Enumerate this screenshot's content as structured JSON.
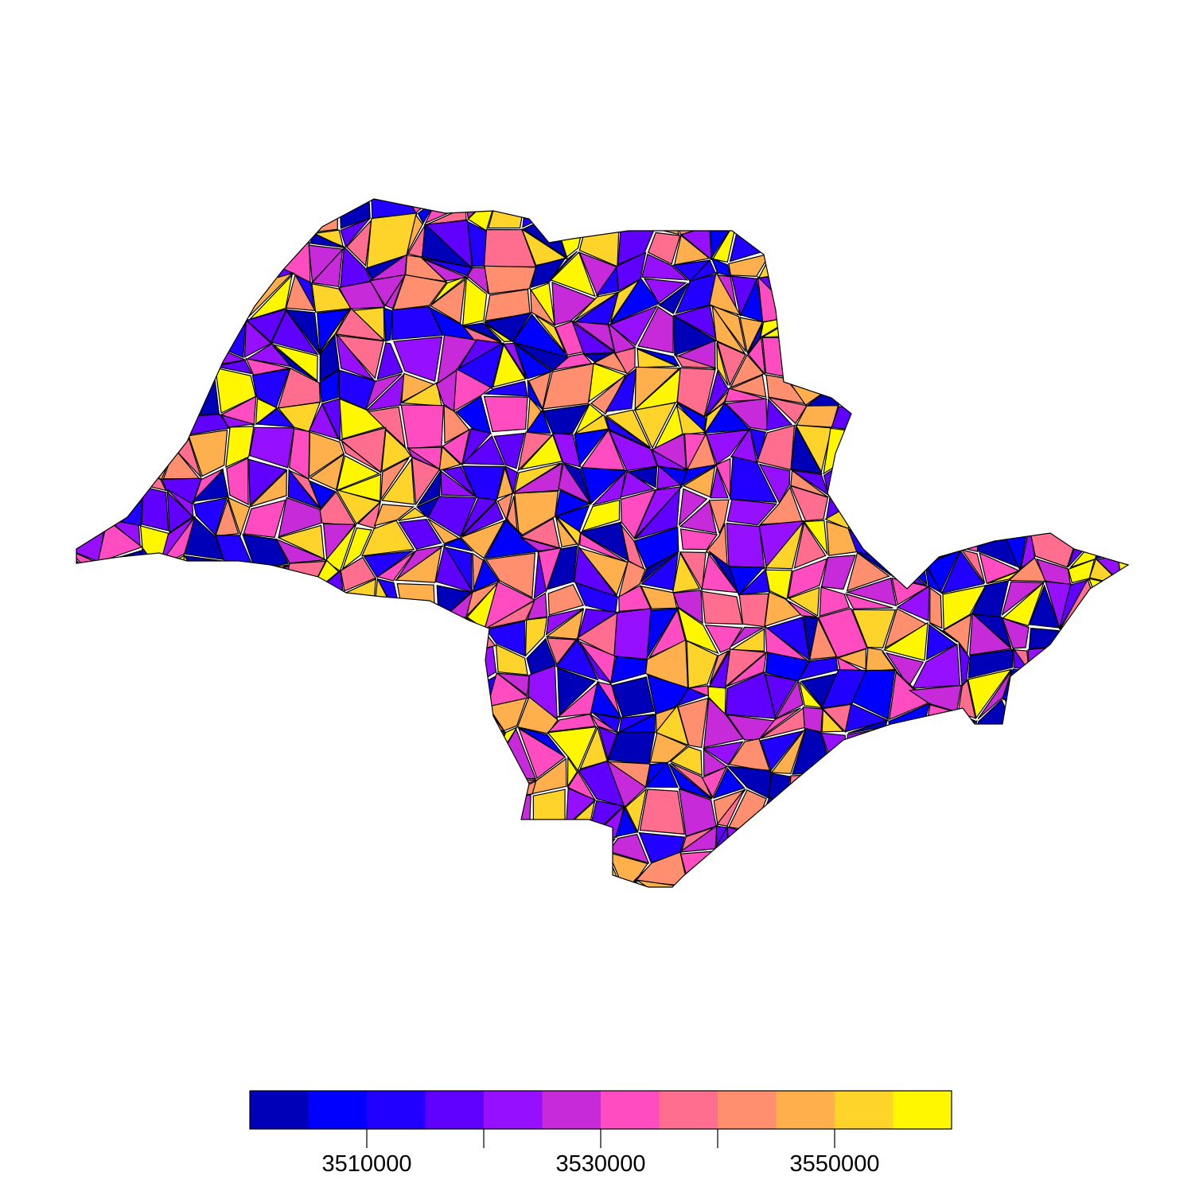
{
  "map": {
    "region": "Sao Paulo state municipalities",
    "fill_scale": "municipality code",
    "num_polygons": 645
  },
  "legend": {
    "colors": [
      "#0000b8",
      "#0000ff",
      "#2200ff",
      "#6000ff",
      "#9610ff",
      "#c62ad9",
      "#ff4cc0",
      "#ff6e8f",
      "#ff8f6e",
      "#ffb04c",
      "#ffd42a",
      "#fff700"
    ],
    "tick_values": [
      3510000,
      3520000,
      3530000,
      3540000,
      3550000
    ],
    "tick_labels": [
      "3510000",
      "3530000",
      "3550000"
    ],
    "range": [
      3500000,
      3560000
    ]
  }
}
